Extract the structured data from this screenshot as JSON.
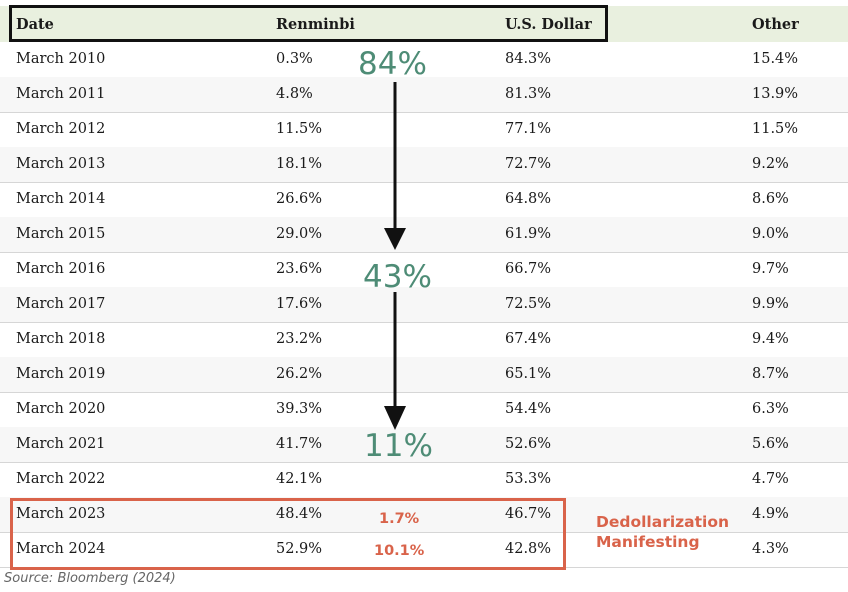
{
  "table": {
    "headers": {
      "date": "Date",
      "renminbi": "Renminbi",
      "usd": "U.S. Dollar",
      "other": "Other"
    },
    "rows": [
      {
        "date": "March 2010",
        "renminbi": "0.3%",
        "usd": "84.3%",
        "other": "15.4%"
      },
      {
        "date": "March 2011",
        "renminbi": "4.8%",
        "usd": "81.3%",
        "other": "13.9%"
      },
      {
        "date": "March 2012",
        "renminbi": "11.5%",
        "usd": "77.1%",
        "other": "11.5%"
      },
      {
        "date": "March 2013",
        "renminbi": "18.1%",
        "usd": "72.7%",
        "other": "9.2%"
      },
      {
        "date": "March 2014",
        "renminbi": "26.6%",
        "usd": "64.8%",
        "other": "8.6%"
      },
      {
        "date": "March 2015",
        "renminbi": "29.0%",
        "usd": "61.9%",
        "other": "9.0%"
      },
      {
        "date": "March 2016",
        "renminbi": "23.6%",
        "usd": "66.7%",
        "other": "9.7%"
      },
      {
        "date": "March 2017",
        "renminbi": "17.6%",
        "usd": "72.5%",
        "other": "9.9%"
      },
      {
        "date": "March 2018",
        "renminbi": "23.2%",
        "usd": "67.4%",
        "other": "9.4%"
      },
      {
        "date": "March 2019",
        "renminbi": "26.2%",
        "usd": "65.1%",
        "other": "8.7%"
      },
      {
        "date": "March 2020",
        "renminbi": "39.3%",
        "usd": "54.4%",
        "other": "6.3%"
      },
      {
        "date": "March 2021",
        "renminbi": "41.7%",
        "usd": "52.6%",
        "other": "5.6%"
      },
      {
        "date": "March 2022",
        "renminbi": "42.1%",
        "usd": "53.3%",
        "other": "4.7%"
      },
      {
        "date": "March 2023",
        "renminbi": "48.4%",
        "usd": "46.7%",
        "other": "4.9%"
      },
      {
        "date": "March 2024",
        "renminbi": "52.9%",
        "usd": "42.8%",
        "other": "4.3%"
      }
    ]
  },
  "annotations": {
    "trend": [
      "84%",
      "43%",
      "11%"
    ],
    "recent": [
      "1.7%",
      "10.1%"
    ],
    "callout_line1": "Dedollarization",
    "callout_line2": "Manifesting"
  },
  "colors": {
    "header_bg": "#e9f0df",
    "trend_green": "#4e8c76",
    "highlight_red": "#d9634a"
  },
  "source": "Source: Bloomberg (2024)"
}
